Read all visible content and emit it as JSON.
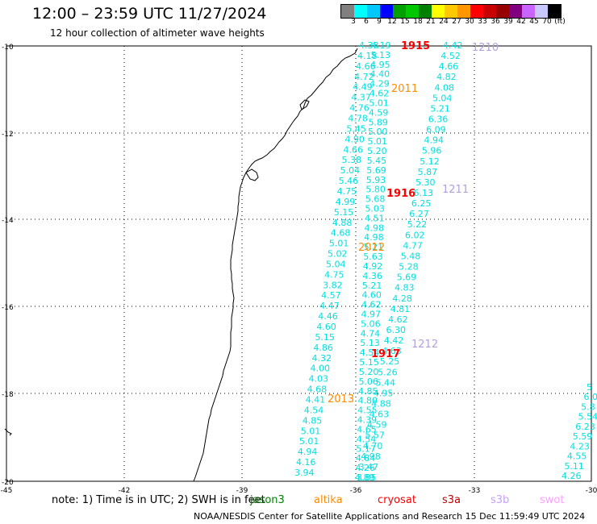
{
  "header": {
    "title": "12:00 – 23:59 UTC 11/27/2024",
    "subtitle": "12 hour collection of altimeter wave heights"
  },
  "scale": {
    "colors": [
      "#808080",
      "#00ffff",
      "#00c8ff",
      "#0000ff",
      "#00a000",
      "#00c800",
      "#008000",
      "#ffff00",
      "#ffc800",
      "#ff9600",
      "#ff0000",
      "#c80000",
      "#960000",
      "#800080",
      "#c864ff",
      "#c8c8ff",
      "#000000"
    ],
    "labels": [
      "3",
      "6",
      "9",
      "12",
      "15",
      "18",
      "21",
      "24",
      "27",
      "30",
      "33",
      "36",
      "39",
      "42",
      "45",
      "70",
      "(ft)"
    ]
  },
  "axes": {
    "lon_labels": [
      "-45",
      "-42",
      "-39",
      "-36",
      "-33",
      "-30"
    ],
    "lat_labels": [
      "-10",
      "-12",
      "-14",
      "-16",
      "-18",
      "-20"
    ]
  },
  "tracks": [
    {
      "name": "track-a",
      "color": "#ff0000",
      "label": "1915",
      "values": [
        "4.19",
        "5.13",
        "4.95",
        "4.40",
        "4.29",
        "4.62",
        "5.01",
        "4.59",
        "5.89",
        "5.00",
        "5.01",
        "5.20",
        "5.45",
        "5.69",
        "5.93",
        "5.80",
        "5.68",
        "5.03",
        "4.51",
        "4.98",
        "4.98",
        "5.21",
        "5.63",
        "4.92",
        "4.36",
        "5.21",
        "4.60",
        "4.62",
        "4.97",
        "5.06",
        "4.74",
        "5.13",
        "4.54",
        "5.15",
        "5.20",
        "5.06",
        "4.85",
        "4.80",
        "4.55",
        "4.39",
        "4.65",
        "4.54",
        "5.17",
        "4.84",
        "4.26",
        "4.89"
      ]
    },
    {
      "name": "track-b",
      "color": "#ff8c00",
      "label": "2011",
      "values": [
        "4.33",
        "4.18",
        "4.66",
        "4.72",
        "4.49",
        "4.37",
        "4.76",
        "4.78",
        "5.45",
        "4.90",
        "4.66",
        "5.38",
        "5.04",
        "5.46",
        "4.75",
        "4.99",
        "5.15",
        "4.88",
        "4.68",
        "5.01",
        "5.02",
        "5.04",
        "4.75",
        "3.82",
        "4.57",
        "4.47",
        "4.46",
        "4.60",
        "5.15",
        "4.86",
        "4.32",
        "4.00",
        "4.03",
        "4.68",
        "4.41",
        "4.54",
        "4.85",
        "5.01",
        "5.01",
        "4.94",
        "4.16",
        "3.94"
      ]
    },
    {
      "name": "track-c",
      "color": "#ff0000",
      "label": "1916",
      "values": [
        "4.42",
        "4.52",
        "4.66",
        "4.82",
        "4.08",
        "5.04",
        "5.21",
        "6.36",
        "6.09",
        "4.94",
        "5.96",
        "5.12",
        "5.87",
        "5.30",
        "6.13",
        "6.25",
        "6.27",
        "5.22",
        "6.02",
        "4.77",
        "5.48",
        "5.28",
        "5.69",
        "4.83",
        "4.28",
        "4.81",
        "4.62",
        "6.30",
        "4.42",
        "4.63",
        "5.25",
        "5.26",
        "5.44",
        "4.95",
        "4.88",
        "4.63",
        "4.59",
        "5.57",
        "4.70",
        "4.98",
        "3.47",
        "3.85"
      ]
    },
    {
      "name": "track-d",
      "color": "#00e0e0",
      "label": "",
      "values": [
        "5",
        "6.0",
        "5.8",
        "5.54",
        "6.23",
        "5.59",
        "4.23",
        "4.55",
        "5.11",
        "4.26"
      ]
    }
  ],
  "track_labels": [
    {
      "text": "1915",
      "color": "#ff0000"
    },
    {
      "text": "1210",
      "color": "#b0a0e0"
    },
    {
      "text": "2011",
      "color": "#ff8c00"
    },
    {
      "text": "1916",
      "color": "#ff0000"
    },
    {
      "text": "1211",
      "color": "#b0a0e0"
    },
    {
      "text": "2012",
      "color": "#ff8c00"
    },
    {
      "text": "1917",
      "color": "#ff0000"
    },
    {
      "text": "1212",
      "color": "#b0a0e0"
    },
    {
      "text": "2013",
      "color": "#ff8c00"
    }
  ],
  "footer": {
    "note": "note: 1) Time is in UTC; 2) SWH is in feet",
    "satellites": [
      {
        "name": "jason3",
        "color": "#008000"
      },
      {
        "name": "altika",
        "color": "#ff8c00"
      },
      {
        "name": "cryosat",
        "color": "#ff0000"
      },
      {
        "name": "s3a",
        "color": "#c00000"
      },
      {
        "name": "s3b",
        "color": "#c8a0ff"
      },
      {
        "name": "swot",
        "color": "#ffa0ff"
      }
    ],
    "credit": "NOAA/NESDIS Center for Satellite Applications and Research   15 Dec 11:59:49 UTC 2024"
  }
}
